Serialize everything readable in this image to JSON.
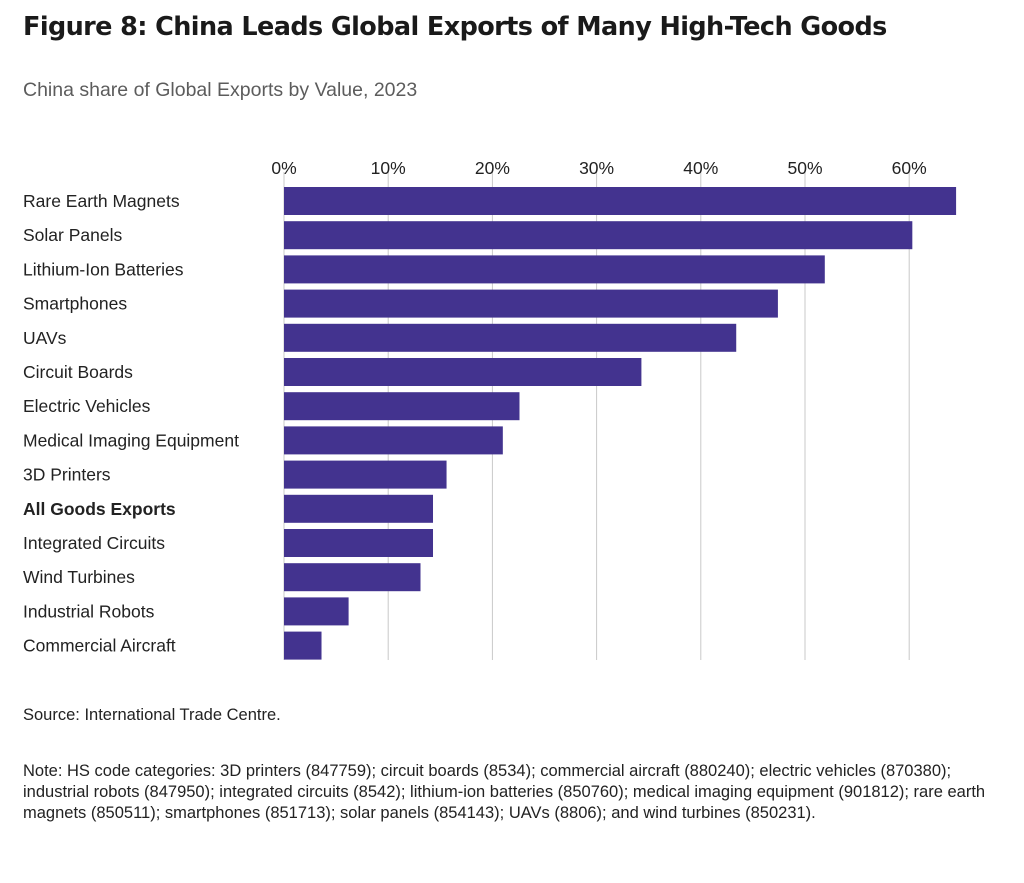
{
  "title": "Figure 8: China Leads Global Exports of Many High-Tech Goods",
  "subtitle": "China share of Global Exports by Value, 2023",
  "source": "Source: International Trade Centre.",
  "note": "Note: HS code categories: 3D printers (847759); circuit boards (8534); commercial aircraft (880240); electric vehicles (870380); industrial robots (847950); integrated circuits (8542); lithium-ion batteries (850760); medical imaging equipment (901812); rare earth magnets (850511); smartphones (851713); solar panels (854143); UAVs (8806); and wind turbines (850231).",
  "chart_data": {
    "type": "bar",
    "orientation": "horizontal",
    "bar_color": "#43338f",
    "grid": true,
    "xaxis_position": "top",
    "xlim": [
      0,
      65
    ],
    "ticks": [
      0,
      10,
      20,
      30,
      40,
      50,
      60
    ],
    "tick_labels": [
      "0%",
      "10%",
      "20%",
      "30%",
      "40%",
      "50%",
      "60%"
    ],
    "categories": [
      "Rare Earth Magnets",
      "Solar Panels",
      "Lithium-Ion Batteries",
      "Smartphones",
      "UAVs",
      "Circuit Boards",
      "Electric Vehicles",
      "Medical Imaging Equipment",
      "3D Printers",
      "All Goods Exports",
      "Integrated Circuits",
      "Wind Turbines",
      "Industrial Robots",
      "Commercial Aircraft"
    ],
    "values": [
      64.5,
      60.3,
      51.9,
      47.4,
      43.4,
      34.3,
      22.6,
      21.0,
      15.6,
      14.3,
      14.3,
      13.1,
      6.2,
      3.6
    ],
    "bold_categories": [
      "All Goods Exports"
    ]
  }
}
